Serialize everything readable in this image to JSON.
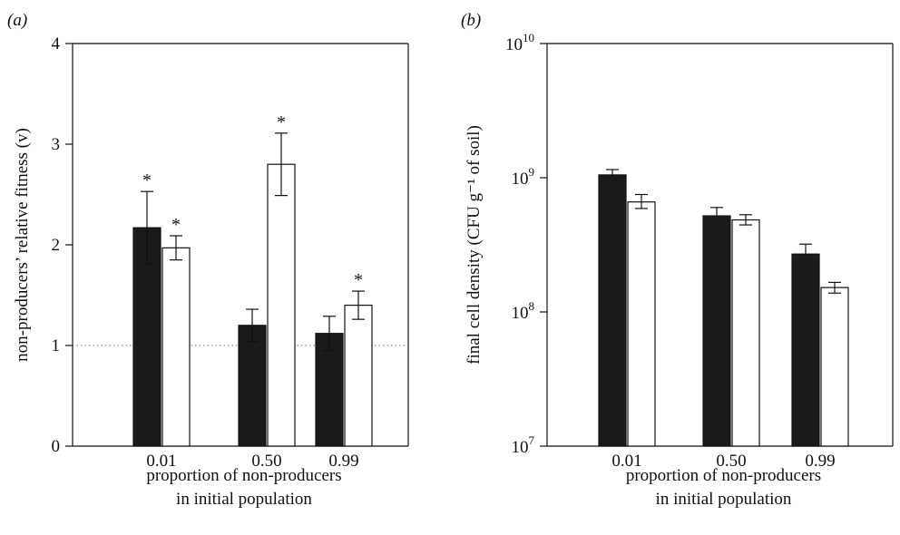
{
  "figure": {
    "colors": {
      "filled_bar": "#1a1a1a",
      "open_bar": "#ffffff",
      "stroke": "#111111",
      "reference_line": "#777777"
    }
  },
  "chart_data": [
    {
      "type": "bar",
      "panel_label": "(a)",
      "categories": [
        "0.01",
        "0.50",
        "0.99"
      ],
      "series": [
        {
          "values": [
            2.17,
            1.2,
            1.12
          ],
          "errors": [
            0.36,
            0.16,
            0.17
          ],
          "significant": [
            true,
            false,
            false
          ],
          "style": "filled"
        },
        {
          "values": [
            1.97,
            2.8,
            1.4
          ],
          "errors": [
            0.12,
            0.31,
            0.14
          ],
          "significant": [
            true,
            true,
            true
          ],
          "style": "open"
        }
      ],
      "xlabel": [
        "proportion of non-producers",
        "in initial population"
      ],
      "ylabel": "non-producers’ relative fitness (v)",
      "ylim": [
        0,
        4
      ],
      "yticks": [
        "0",
        "1",
        "2",
        "3",
        "4"
      ],
      "significance_marker": "*",
      "reference_line": {
        "y": 1,
        "style": "dotted"
      },
      "grid": false
    },
    {
      "type": "bar",
      "panel_label": "(b)",
      "categories": [
        "0.01",
        "0.50",
        "0.99"
      ],
      "yscale": "log",
      "series": [
        {
          "values": [
            1050000000.0,
            520000000.0,
            270000000.0
          ],
          "error_high": [
            1150000000.0,
            600000000.0,
            320000000.0
          ],
          "style": "filled"
        },
        {
          "values": [
            660000000.0,
            485000000.0,
            152000000.0
          ],
          "error_low": [
            590000000.0,
            445000000.0,
            138000000.0
          ],
          "error_high": [
            750000000.0,
            530000000.0,
            166000000.0
          ],
          "style": "open"
        }
      ],
      "xlabel": [
        "proportion of non-producers",
        "in initial population"
      ],
      "ylabel": "final cell density (CFU g⁻¹ of soil)",
      "ylim": [
        10000000.0,
        10000000000.0
      ],
      "yticks": [
        {
          "base": "10",
          "exp": "7"
        },
        {
          "base": "10",
          "exp": "8"
        },
        {
          "base": "10",
          "exp": "9"
        },
        {
          "base": "10",
          "exp": "10"
        }
      ],
      "grid": false
    }
  ]
}
